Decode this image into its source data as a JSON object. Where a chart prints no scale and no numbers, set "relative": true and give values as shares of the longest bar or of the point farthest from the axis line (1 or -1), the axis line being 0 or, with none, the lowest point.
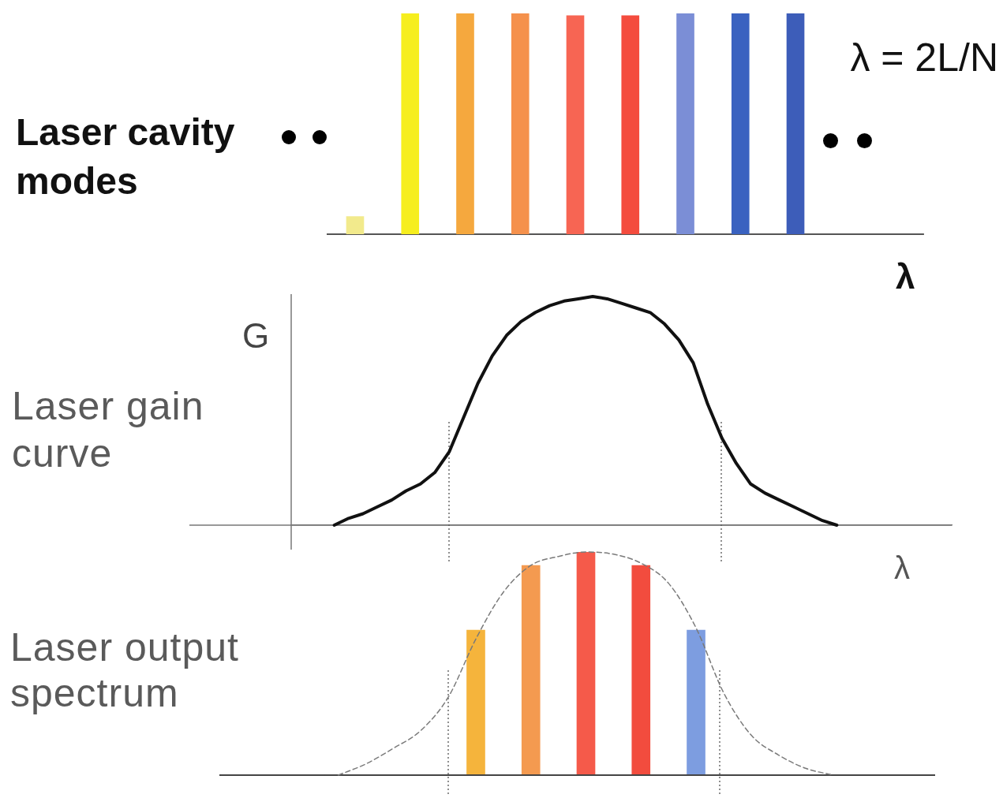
{
  "chart_data": [
    {
      "type": "bar",
      "title": "Laser cavity modes",
      "xlabel": "λ",
      "annotations": [
        "λ = 2L/N"
      ],
      "relative": true,
      "categories": [
        null,
        null,
        null,
        null,
        null,
        null,
        null,
        null,
        null
      ],
      "values": [
        0.08,
        1,
        1,
        1,
        0.99,
        0.99,
        1,
        1,
        1
      ],
      "colors": [
        "#f2ea8c",
        "#f6ee1e",
        "#f5a83e",
        "#f5914c",
        "#f76553",
        "#f44c3e",
        "#7b8ed6",
        "#3a62c0",
        "#3d5db9"
      ]
    },
    {
      "type": "line",
      "title": "Laser gain curve",
      "xlabel": "λ",
      "ylabel": "G",
      "relative": true,
      "marker": "none",
      "color": "#111111",
      "categories": [
        null,
        null,
        null,
        null,
        null,
        null,
        null,
        null,
        null,
        null,
        null,
        null,
        null,
        null,
        null,
        null,
        null,
        null,
        null,
        null,
        null,
        null,
        null,
        null,
        null,
        null,
        null,
        null,
        null,
        null,
        null,
        null,
        null,
        null,
        null,
        null,
        null,
        null,
        null,
        null,
        null,
        null,
        null,
        null,
        null,
        null,
        null
      ],
      "values": [
        null,
        null,
        null,
        0,
        0.03,
        0.05,
        0.08,
        0.11,
        0.15,
        0.18,
        0.23,
        0.32,
        0.47,
        0.62,
        0.74,
        0.83,
        0.89,
        0.93,
        0.96,
        0.98,
        0.99,
        1,
        0.99,
        0.97,
        0.95,
        0.93,
        0.88,
        0.81,
        0.71,
        0.53,
        0.38,
        0.27,
        0.18,
        0.14,
        0.11,
        0.08,
        0.05,
        0.02,
        0,
        null,
        null,
        null,
        null,
        null,
        null,
        null,
        null
      ]
    },
    {
      "type": "bar",
      "title": "Laser output spectrum",
      "relative": true,
      "categories": [
        null,
        null,
        null,
        null,
        null
      ],
      "values": [
        0.65,
        0.94,
        1,
        0.94,
        0.65
      ],
      "colors": [
        "#f5b43c",
        "#f49a50",
        "#f55a4a",
        "#f24c3e",
        "#7d9de0"
      ]
    },
    {
      "type": "line",
      "relative": true,
      "marker": "none",
      "line_style": "dashed",
      "color": "#7a7a7a",
      "categories": [
        null,
        null,
        null,
        null,
        null,
        null,
        null,
        null,
        null,
        null,
        null,
        null,
        null,
        null,
        null,
        null,
        null,
        null,
        null
      ],
      "values": [
        0,
        0.05,
        0.12,
        0.2,
        0.35,
        0.61,
        0.82,
        0.94,
        0.98,
        1,
        0.99,
        0.95,
        0.86,
        0.66,
        0.37,
        0.18,
        0.09,
        0.03,
        0
      ]
    }
  ]
}
